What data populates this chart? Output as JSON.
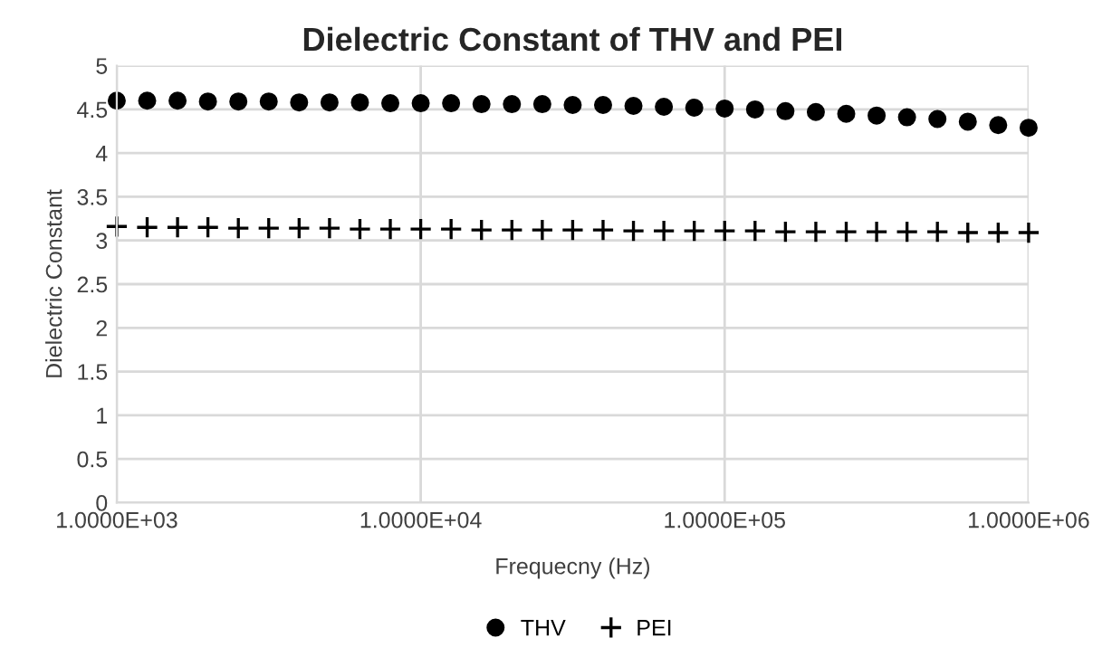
{
  "chart_data": {
    "type": "scatter",
    "title": "Dielectric Constant of THV and PEI",
    "xlabel": "Frequecny (Hz)",
    "ylabel": "Dielectric Constant",
    "log": "x",
    "x": [
      1000,
      1259,
      1585,
      1995,
      2512,
      3162,
      3981,
      5012,
      6310,
      7943,
      10000,
      12589,
      15849,
      19953,
      25119,
      31623,
      39811,
      50119,
      63096,
      79433,
      100000,
      125893,
      158489,
      199526,
      251189,
      316228,
      398107,
      501187,
      630957,
      794328,
      1000000
    ],
    "series": [
      {
        "name": "THV",
        "color": "#000000",
        "marker": "circle",
        "values": [
          4.6,
          4.6,
          4.6,
          4.59,
          4.59,
          4.59,
          4.58,
          4.58,
          4.58,
          4.57,
          4.57,
          4.57,
          4.56,
          4.56,
          4.56,
          4.55,
          4.55,
          4.54,
          4.53,
          4.52,
          4.51,
          4.5,
          4.48,
          4.47,
          4.45,
          4.43,
          4.41,
          4.39,
          4.36,
          4.32,
          4.29
        ]
      },
      {
        "name": "PEI",
        "color": "#000000",
        "marker": "cross",
        "values": [
          3.16,
          3.15,
          3.15,
          3.15,
          3.14,
          3.14,
          3.14,
          3.14,
          3.13,
          3.13,
          3.13,
          3.13,
          3.12,
          3.12,
          3.12,
          3.12,
          3.12,
          3.11,
          3.11,
          3.11,
          3.11,
          3.11,
          3.1,
          3.1,
          3.1,
          3.1,
          3.1,
          3.1,
          3.09,
          3.09,
          3.09
        ]
      }
    ],
    "xlim": [
      1000,
      1000000
    ],
    "xticks": [
      {
        "value": 1000,
        "label": "1.0000E+03"
      },
      {
        "value": 10000,
        "label": "1.0000E+04"
      },
      {
        "value": 100000,
        "label": "1.0000E+05"
      },
      {
        "value": 1000000,
        "label": "1.0000E+06"
      }
    ],
    "ylim": [
      0,
      5
    ],
    "yticks": [
      0,
      0.5,
      1,
      1.5,
      2,
      2.5,
      3,
      3.5,
      4,
      4.5,
      5
    ],
    "grid": true,
    "legend": "bottom"
  }
}
